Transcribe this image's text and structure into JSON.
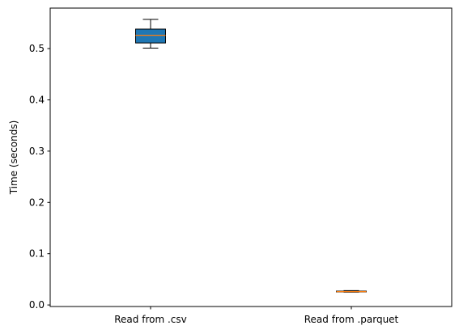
{
  "chart_data": {
    "type": "boxplot",
    "title": "",
    "xlabel": "",
    "ylabel": "Time (seconds)",
    "ylim": [
      -0.003,
      0.579
    ],
    "yticks": [
      0.0,
      0.1,
      0.2,
      0.3,
      0.4,
      0.5
    ],
    "ytick_labels": [
      "0.0",
      "0.1",
      "0.2",
      "0.3",
      "0.4",
      "0.5"
    ],
    "categories": [
      "Read from .csv",
      "Read from .parquet"
    ],
    "boxes": [
      {
        "category": "Read from .csv",
        "whisker_low": 0.501,
        "q1": 0.511,
        "median": 0.526,
        "q3": 0.538,
        "whisker_high": 0.557,
        "fill_color": "#1f77b4",
        "median_color": "#ff7f0e"
      },
      {
        "category": "Read from .parquet",
        "whisker_low": 0.025,
        "q1": 0.026,
        "median": 0.026,
        "q3": 0.027,
        "whisker_high": 0.028,
        "fill_color": "#1f77b4",
        "median_color": "#ff7f0e"
      }
    ],
    "grid": false,
    "legend": "none"
  }
}
